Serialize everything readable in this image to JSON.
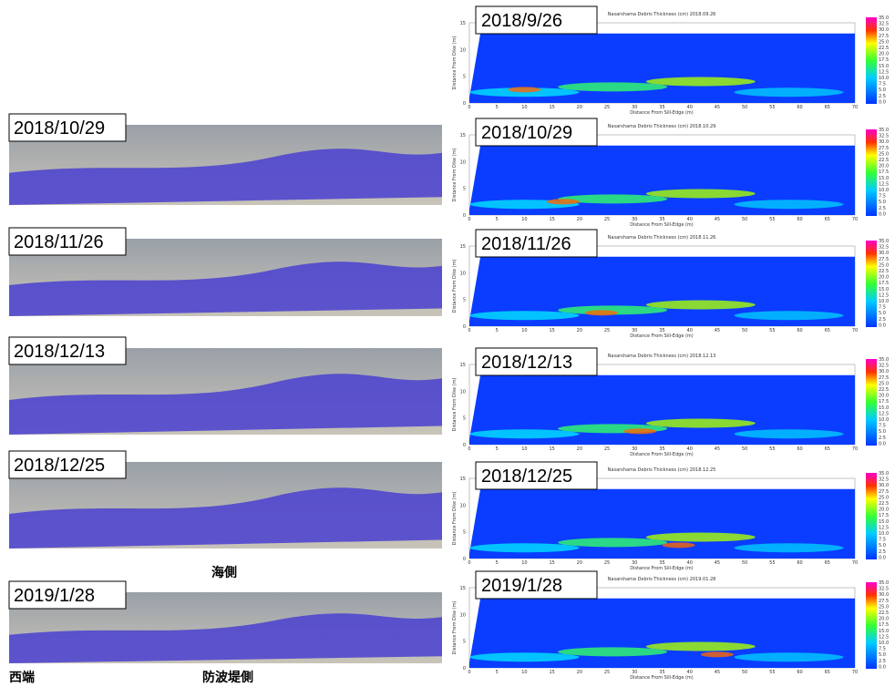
{
  "photos": [
    {
      "date": "2018/10/29"
    },
    {
      "date": "2018/11/26"
    },
    {
      "date": "2018/12/13"
    },
    {
      "date": "2018/12/25"
    },
    {
      "date": "2019/1/28"
    }
  ],
  "heatmaps": [
    {
      "date": "2018/9/26",
      "title": "Nasarshama Debris Thickness (cm) 2018.09.26"
    },
    {
      "date": "2018/10/29",
      "title": "Nasarshama Debris Thickness (cm) 2018.10.29"
    },
    {
      "date": "2018/11/26",
      "title": "Nasarshama Debris Thickness (cm) 2018.11.26"
    },
    {
      "date": "2018/12/13",
      "title": "Nasarshama Debris Thickness (cm) 2018.12.13"
    },
    {
      "date": "2018/12/25",
      "title": "Nasarshama Debris Thickness (cm) 2018.12.25"
    },
    {
      "date": "2019/1/28",
      "title": "Nasarshama Debris Thickness (cm) 2019.01.28"
    }
  ],
  "heatmap_axes": {
    "y_label": "Distance From Dike (m)",
    "x_label": "Distance From Sill-Edge (m)",
    "xticks": [
      0,
      5,
      10,
      15,
      20,
      25,
      30,
      35,
      40,
      45,
      50,
      55,
      60,
      65,
      70
    ],
    "yticks": [
      0,
      5,
      10,
      15
    ],
    "colorbar_ticks": [
      "35.0",
      "32.5",
      "30.0",
      "27.5",
      "25.0",
      "22.5",
      "20.0",
      "17.5",
      "15.0",
      "12.5",
      "10.0",
      "7.5",
      "5.0",
      "2.5",
      "0.0"
    ]
  },
  "labels": {
    "sea_side": "海側",
    "west_end": "西端",
    "breakwater_side": "防波堤側"
  }
}
